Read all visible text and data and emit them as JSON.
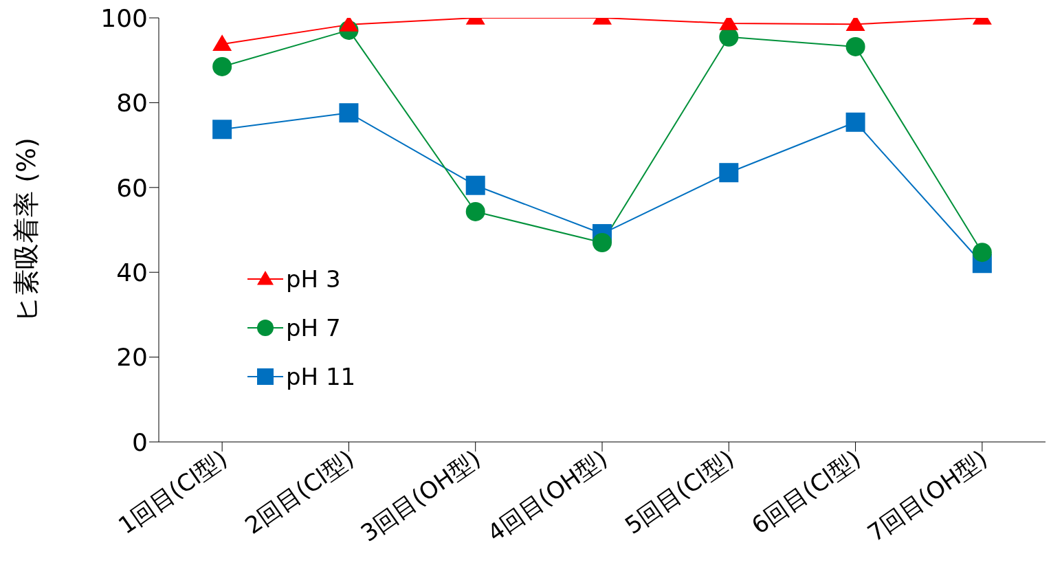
{
  "chart_data": {
    "type": "line",
    "ylabel": "ヒ素吸着率 (%)",
    "categories": [
      "1回目(Cl型)",
      "2回目(Cl型)",
      "3回目(OH型)",
      "4回目(OH型)",
      "5回目(Cl型)",
      "6回目(Cl型)",
      "7回目(OH型)"
    ],
    "ylim": [
      0,
      100
    ],
    "yticks": [
      0,
      20,
      40,
      60,
      80,
      100
    ],
    "grid": false,
    "legend": "left",
    "series": [
      {
        "name": "pH 3",
        "color": "#ff0000",
        "marker": "triangle",
        "values": [
          93.8,
          98.4,
          100,
          100,
          98.7,
          98.5,
          100
        ]
      },
      {
        "name": "pH 7",
        "color": "#00913a",
        "marker": "circle",
        "values": [
          88.5,
          97.1,
          54.3,
          47.0,
          95.5,
          93.2,
          44.7
        ]
      },
      {
        "name": "pH 11",
        "color": "#0070c0",
        "marker": "square",
        "values": [
          73.7,
          77.6,
          60.5,
          49.1,
          63.5,
          75.4,
          42.1
        ]
      }
    ]
  }
}
